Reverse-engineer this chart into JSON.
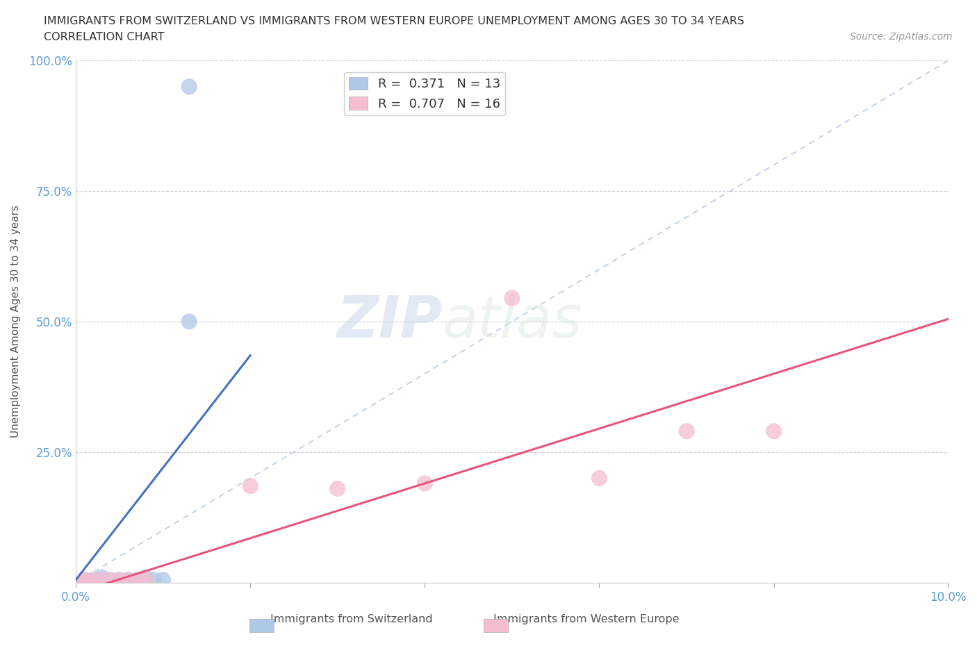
{
  "title_line1": "IMMIGRANTS FROM SWITZERLAND VS IMMIGRANTS FROM WESTERN EUROPE UNEMPLOYMENT AMONG AGES 30 TO 34 YEARS",
  "title_line2": "CORRELATION CHART",
  "source_text": "Source: ZipAtlas.com",
  "ylabel": "Unemployment Among Ages 30 to 34 years",
  "xlim": [
    0.0,
    0.1
  ],
  "ylim": [
    0.0,
    1.0
  ],
  "xticks": [
    0.0,
    0.02,
    0.04,
    0.06,
    0.08,
    0.1
  ],
  "yticks": [
    0.0,
    0.25,
    0.5,
    0.75,
    1.0
  ],
  "watermark_zip": "ZIP",
  "watermark_atlas": "atlas",
  "legend_r1": "R =  0.371",
  "legend_n1": "N = 13",
  "legend_r2": "R =  0.707",
  "legend_n2": "N = 16",
  "color_swiss": "#aec8e8",
  "color_swiss_line": "#4472c4",
  "color_we": "#f5bdd0",
  "color_we_line": "#e8547a",
  "color_diagonal": "#b8cce4",
  "swiss_x": [
    0.001,
    0.002,
    0.003,
    0.003,
    0.004,
    0.005,
    0.006,
    0.007,
    0.008,
    0.009,
    0.01,
    0.013,
    0.013
  ],
  "swiss_y": [
    0.005,
    0.005,
    0.005,
    0.01,
    0.005,
    0.005,
    0.005,
    0.005,
    0.01,
    0.005,
    0.005,
    0.5,
    0.95
  ],
  "we_x": [
    0.001,
    0.001,
    0.002,
    0.003,
    0.004,
    0.005,
    0.006,
    0.007,
    0.008,
    0.02,
    0.03,
    0.04,
    0.05,
    0.06,
    0.07,
    0.08
  ],
  "we_y": [
    0.005,
    0.005,
    0.005,
    0.005,
    0.005,
    0.005,
    0.005,
    0.005,
    0.005,
    0.185,
    0.18,
    0.19,
    0.545,
    0.2,
    0.29,
    0.29
  ],
  "swiss_trend_x": [
    0.0,
    0.02
  ],
  "swiss_trend_y": [
    0.005,
    0.435
  ],
  "we_trend_x": [
    0.0,
    0.1
  ],
  "we_trend_y": [
    -0.02,
    0.505
  ]
}
